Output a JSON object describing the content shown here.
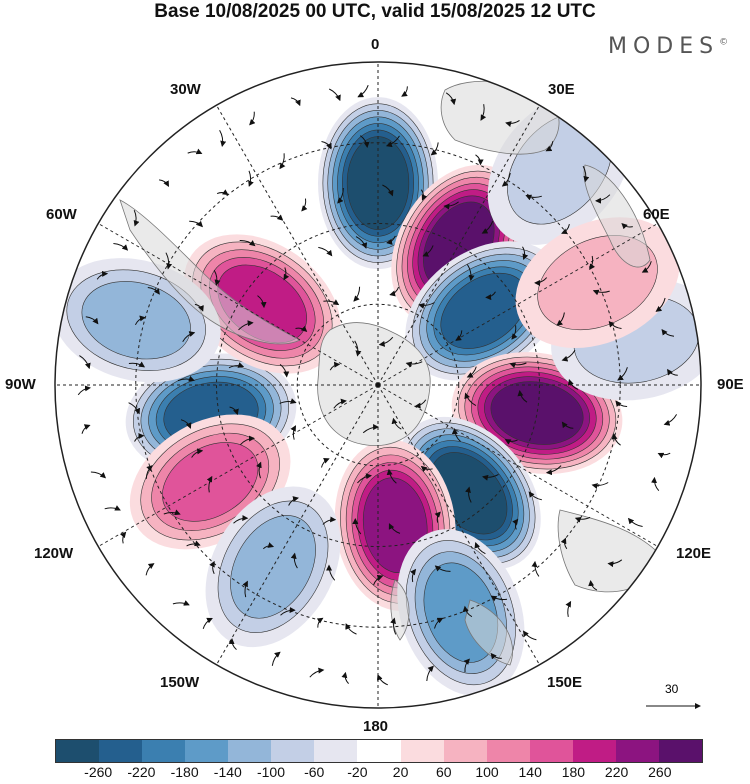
{
  "title": "Base 10/08/2025 00 UTC, valid 15/08/2025 12 UTC",
  "brand": "MODES",
  "brand_mark": "©",
  "lon_labels": {
    "l0": "0",
    "l30e": "30E",
    "l60e": "60E",
    "l90e": "90E",
    "l120e": "120E",
    "l150e": "150E",
    "l180": "180",
    "l150w": "150W",
    "l120w": "120W",
    "l90w": "90W",
    "l60w": "60W",
    "l30w": "30W"
  },
  "reference_vector": "30",
  "colorbar": {
    "colors": [
      "#1d4e6e",
      "#245f8e",
      "#3b7fb0",
      "#5e9bc8",
      "#93b6d9",
      "#c3cfe6",
      "#e6e6f0",
      "#ffffff",
      "#fbdcdf",
      "#f6b3c1",
      "#ee85a9",
      "#e0549a",
      "#c01c85",
      "#8c1480",
      "#5a116b"
    ],
    "ticks": [
      "-260",
      "-220",
      "-180",
      "-140",
      "-100",
      "-60",
      "-20",
      "20",
      "60",
      "100",
      "140",
      "180",
      "220",
      "260"
    ]
  },
  "field": {
    "anomalies": [
      {
        "lon": 0,
        "lat": -40,
        "value": -260
      },
      {
        "lon": 30,
        "lat": -50,
        "value": 260
      },
      {
        "lon": 55,
        "lat": -58,
        "value": -250
      },
      {
        "lon": 100,
        "lat": -50,
        "value": 270
      },
      {
        "lon": 140,
        "lat": -55,
        "value": -260
      },
      {
        "lon": 173,
        "lat": -55,
        "value": 240
      },
      {
        "lon": -100,
        "lat": -48,
        "value": -240
      },
      {
        "lon": -55,
        "lat": -55,
        "value": 180
      },
      {
        "lon": -120,
        "lat": -42,
        "value": 140
      },
      {
        "lon": -150,
        "lat": -38,
        "value": -120
      },
      {
        "lon": 160,
        "lat": -30,
        "value": -140
      },
      {
        "lon": 80,
        "lat": -25,
        "value": -90
      },
      {
        "lon": 40,
        "lat": -20,
        "value": -70
      },
      {
        "lon": 65,
        "lat": -30,
        "value": 60
      },
      {
        "lon": -75,
        "lat": -28,
        "value": -120
      }
    ]
  }
}
